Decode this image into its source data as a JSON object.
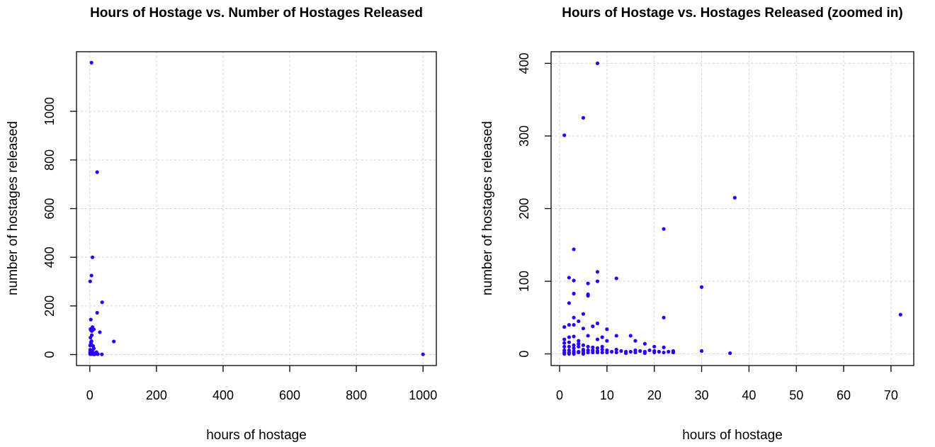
{
  "chart_data": [
    {
      "type": "scatter",
      "title": "Hours of Hostage vs. Number of Hostages Released",
      "xlabel": "hours of hostage",
      "ylabel": "number of hostages released",
      "xlim": [
        -40,
        1040
      ],
      "ylim": [
        -45,
        1245
      ],
      "xticks": [
        0,
        200,
        400,
        600,
        800,
        1000
      ],
      "yticks": [
        0,
        200,
        400,
        600,
        800,
        1000
      ],
      "grid": true,
      "point_color": "#2b00ff",
      "series": [
        {
          "points": [
            [
              5,
              1200
            ],
            [
              22,
              750
            ],
            [
              8,
              400
            ],
            [
              5,
              325
            ],
            [
              1,
              301
            ],
            [
              37,
              215
            ],
            [
              22,
              172
            ],
            [
              3,
              144
            ],
            [
              72,
              54
            ],
            [
              30,
              92
            ],
            [
              2,
              105
            ],
            [
              3,
              101
            ],
            [
              6,
              97
            ],
            [
              8,
              113
            ],
            [
              8,
              100
            ],
            [
              12,
              104
            ],
            [
              2,
              70
            ],
            [
              6,
              80
            ],
            [
              10,
              35
            ],
            [
              20,
              10
            ],
            [
              12,
              25
            ],
            [
              4,
              45
            ],
            [
              3,
              50
            ],
            [
              5,
              55
            ],
            [
              1,
              37
            ],
            [
              2,
              40
            ],
            [
              9,
              20
            ],
            [
              15,
              5
            ],
            [
              18,
              3
            ],
            [
              24,
              2
            ],
            [
              36,
              1
            ],
            [
              1,
              20
            ],
            [
              2,
              15
            ],
            [
              3,
              10
            ],
            [
              1,
              10
            ],
            [
              2,
              5
            ],
            [
              4,
              3
            ],
            [
              5,
              8
            ],
            [
              6,
              12
            ],
            [
              7,
              5
            ],
            [
              8,
              2
            ],
            [
              9,
              3
            ],
            [
              10,
              4
            ],
            [
              11,
              6
            ],
            [
              13,
              2
            ],
            [
              14,
              1
            ],
            [
              16,
              3
            ],
            [
              1,
              5
            ],
            [
              1,
              2
            ],
            [
              2,
              2
            ],
            [
              3,
              3
            ],
            [
              4,
              7
            ],
            [
              5,
              4
            ],
            [
              6,
              6
            ],
            [
              7,
              9
            ],
            [
              1000,
              1
            ]
          ]
        }
      ]
    },
    {
      "type": "scatter",
      "title": "Hours of Hostage vs. Hostages Released (zoomed in)",
      "xlabel": "hours of hostage",
      "ylabel": "number of hostages released",
      "xlim": [
        -1.8,
        74.8
      ],
      "ylim": [
        -16,
        416
      ],
      "xticks": [
        0,
        10,
        20,
        30,
        40,
        50,
        60,
        70
      ],
      "yticks": [
        0,
        100,
        200,
        300,
        400
      ],
      "grid": true,
      "point_color": "#2b00ff",
      "series": [
        {
          "points": [
            [
              8,
              400
            ],
            [
              5,
              325
            ],
            [
              1,
              301
            ],
            [
              37,
              215
            ],
            [
              22,
              172
            ],
            [
              3,
              144
            ],
            [
              72,
              54
            ],
            [
              30,
              92
            ],
            [
              2,
              105
            ],
            [
              3,
              101
            ],
            [
              3,
              83
            ],
            [
              6,
              97
            ],
            [
              6,
              80
            ],
            [
              6,
              82
            ],
            [
              8,
              113
            ],
            [
              8,
              100
            ],
            [
              12,
              104
            ],
            [
              2,
              70
            ],
            [
              1,
              37
            ],
            [
              2,
              40
            ],
            [
              3,
              50
            ],
            [
              3,
              40
            ],
            [
              4,
              45
            ],
            [
              5,
              55
            ],
            [
              5,
              35
            ],
            [
              6,
              25
            ],
            [
              7,
              38
            ],
            [
              8,
              42
            ],
            [
              8,
              20
            ],
            [
              9,
              23
            ],
            [
              10,
              34
            ],
            [
              10,
              18
            ],
            [
              9,
              10
            ],
            [
              12,
              25
            ],
            [
              15,
              25
            ],
            [
              16,
              18
            ],
            [
              18,
              14
            ],
            [
              20,
              10
            ],
            [
              22,
              50
            ],
            [
              22,
              9
            ],
            [
              1,
              20
            ],
            [
              2,
              23
            ],
            [
              3,
              24
            ],
            [
              4,
              18
            ],
            [
              1,
              15
            ],
            [
              2,
              16
            ],
            [
              3,
              12
            ],
            [
              4,
              14
            ],
            [
              5,
              12
            ],
            [
              1,
              10
            ],
            [
              2,
              10
            ],
            [
              3,
              8
            ],
            [
              4,
              10
            ],
            [
              5,
              6
            ],
            [
              6,
              10
            ],
            [
              7,
              9
            ],
            [
              8,
              8
            ],
            [
              1,
              5
            ],
            [
              2,
              5
            ],
            [
              3,
              4
            ],
            [
              4,
              3
            ],
            [
              5,
              4
            ],
            [
              6,
              5
            ],
            [
              7,
              5
            ],
            [
              8,
              4
            ],
            [
              9,
              6
            ],
            [
              10,
              5
            ],
            [
              11,
              3
            ],
            [
              12,
              6
            ],
            [
              13,
              4
            ],
            [
              14,
              3
            ],
            [
              15,
              3
            ],
            [
              16,
              5
            ],
            [
              17,
              4
            ],
            [
              18,
              3
            ],
            [
              19,
              5
            ],
            [
              20,
              4
            ],
            [
              21,
              3
            ],
            [
              23,
              3
            ],
            [
              24,
              4
            ],
            [
              1,
              2
            ],
            [
              2,
              2
            ],
            [
              3,
              2
            ],
            [
              4,
              2
            ],
            [
              5,
              2
            ],
            [
              6,
              2
            ],
            [
              7,
              2
            ],
            [
              8,
              2
            ],
            [
              9,
              2
            ],
            [
              10,
              2
            ],
            [
              12,
              2
            ],
            [
              14,
              1
            ],
            [
              16,
              2
            ],
            [
              18,
              1
            ],
            [
              20,
              2
            ],
            [
              22,
              2
            ],
            [
              24,
              2
            ],
            [
              30,
              4
            ],
            [
              36,
              1
            ],
            [
              1,
              0
            ],
            [
              2,
              0
            ],
            [
              3,
              0
            ],
            [
              5,
              0
            ]
          ]
        }
      ]
    }
  ]
}
